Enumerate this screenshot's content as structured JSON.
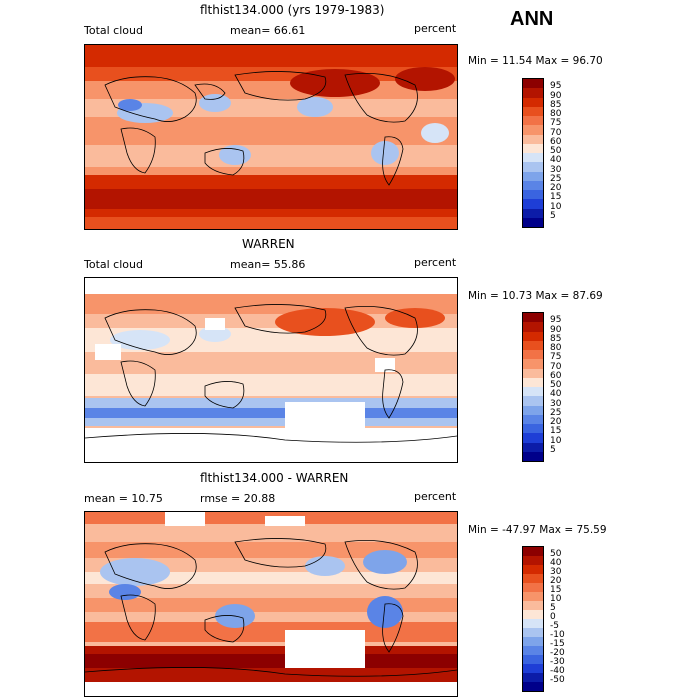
{
  "season": "ANN",
  "panels": [
    {
      "title": "flthist134.000 (yrs 1979-1983)",
      "left_label": "Total cloud",
      "center_label": "mean=  66.61",
      "right_label": "percent",
      "minmax": "Min =  11.54 Max =  96.70"
    },
    {
      "title": "WARREN",
      "left_label": "Total cloud",
      "center_label": "mean=  55.86",
      "right_label": "percent",
      "minmax": "Min =  10.73 Max =  87.69"
    },
    {
      "title": "flthist134.000 - WARREN",
      "left_label": "mean =  10.75",
      "center_label": "rmse =  20.88",
      "right_label": "percent",
      "minmax": "Min = -47.97 Max =  75.59"
    }
  ],
  "colorbars": {
    "cloud": {
      "levels": [
        "95",
        "90",
        "85",
        "80",
        "75",
        "70",
        "60",
        "50",
        "40",
        "30",
        "25",
        "20",
        "15",
        "10",
        "5"
      ],
      "colors": [
        "#8c0000",
        "#b31400",
        "#d42a00",
        "#e8501e",
        "#f27246",
        "#f7946a",
        "#fabb9c",
        "#fde6d6",
        "#d6e4f7",
        "#aac4f0",
        "#7ea4ea",
        "#5a84e6",
        "#3a64e0",
        "#1e3ed6",
        "#0c1ca8",
        "#00008a"
      ]
    },
    "diff": {
      "levels": [
        "50",
        "40",
        "30",
        "20",
        "15",
        "10",
        "5",
        "0",
        "-5",
        "-10",
        "-15",
        "-20",
        "-30",
        "-40",
        "-50"
      ],
      "colors": [
        "#8c0000",
        "#b31400",
        "#d42a00",
        "#e8501e",
        "#f27246",
        "#f7946a",
        "#fabb9c",
        "#fde6d6",
        "#d6e4f7",
        "#aac4f0",
        "#7ea4ea",
        "#5a84e6",
        "#3a64e0",
        "#1e3ed6",
        "#0c1ca8",
        "#00008a"
      ]
    }
  }
}
